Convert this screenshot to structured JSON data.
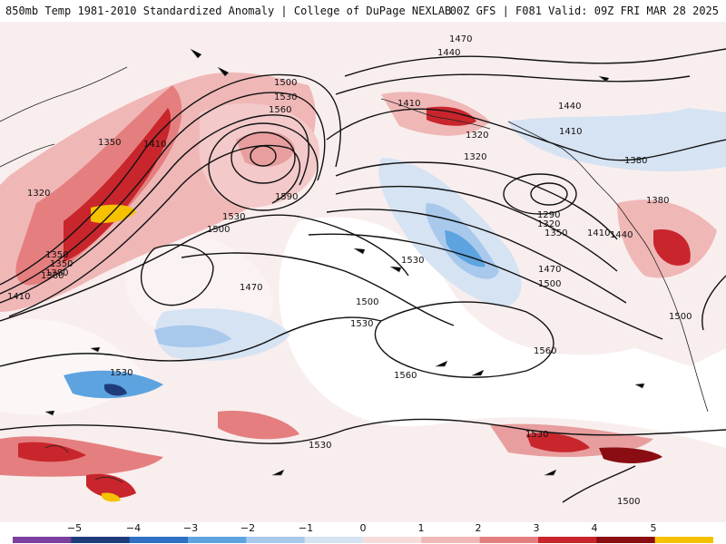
{
  "header": {
    "left_title": "850mb Temp 1981-2010 Standardized Anomaly | College of DuPage NEXLAB",
    "right_title": "00Z GFS | F081 Valid: 09Z FRI MAR 28 2025"
  },
  "map": {
    "contour_labels": [
      "1470",
      "1440",
      "1500",
      "1530",
      "1560",
      "1350",
      "1410",
      "1590",
      "1320",
      "1380",
      "1410",
      "1350",
      "1320",
      "1440",
      "1410",
      "1380",
      "1380",
      "1440",
      "1290",
      "1320",
      "1350",
      "1410",
      "1470",
      "1500",
      "1530",
      "1530",
      "1500",
      "1470",
      "1500",
      "1500",
      "1530",
      "1560",
      "1560",
      "1530",
      "1530",
      "1500",
      "1320",
      "1350",
      "1380",
      "1410",
      "1530"
    ]
  },
  "legend": {
    "ticks": [
      "−5",
      "−4",
      "−3",
      "−2",
      "−1",
      "0",
      "1",
      "2",
      "3",
      "4",
      "5"
    ],
    "colors": [
      "#7b3fa0",
      "#1f3c7a",
      "#2f6fc4",
      "#5da3e0",
      "#a8c8ec",
      "#d6e3f3",
      "#f7dcdc",
      "#f0b7b7",
      "#e57f7f",
      "#c8262c",
      "#8a0d13",
      "#f5c200"
    ]
  }
}
